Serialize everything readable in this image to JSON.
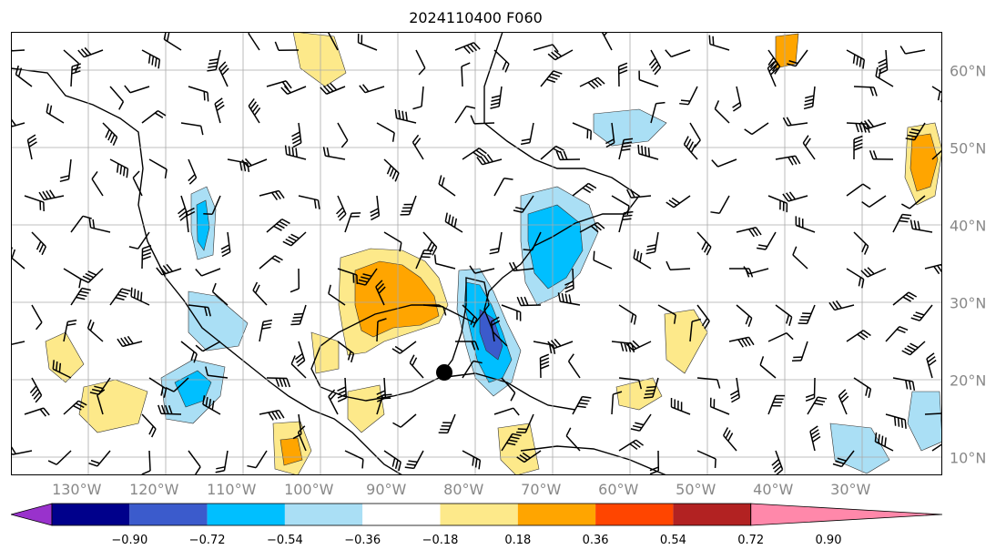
{
  "title": "2024110400 F060",
  "lon_labels": [
    {
      "text": "130°W",
      "lon": -130
    },
    {
      "text": "120°W",
      "lon": -120
    },
    {
      "text": "110°W",
      "lon": -110
    },
    {
      "text": "100°W",
      "lon": -100
    },
    {
      "text": "90°W",
      "lon": -90
    },
    {
      "text": "80°W",
      "lon": -80
    },
    {
      "text": "70°W",
      "lon": -70
    },
    {
      "text": "60°W",
      "lon": -60
    },
    {
      "text": "50°W",
      "lon": -50
    },
    {
      "text": "40°W",
      "lon": -40
    },
    {
      "text": "30°W",
      "lon": -30
    }
  ],
  "lat_labels": [
    {
      "text": "60°N",
      "lat": 60
    },
    {
      "text": "50°N",
      "lat": 50
    },
    {
      "text": "40°N",
      "lat": 40
    },
    {
      "text": "30°N",
      "lat": 30
    },
    {
      "text": "20°N",
      "lat": 20
    },
    {
      "text": "10°N",
      "lat": 10
    }
  ],
  "colorbar": {
    "levels": [
      "−0.90",
      "−0.72",
      "−0.54",
      "−0.36",
      "−0.18",
      "0.18",
      "0.36",
      "0.54",
      "0.72",
      "0.90"
    ],
    "colors": [
      "#9932cc",
      "#00008b",
      "#3b5bcc",
      "#00bfff",
      "#aadff5",
      "#ffffff",
      "#fde98a",
      "#ffa500",
      "#ff4500",
      "#b22222",
      "#ff88aa"
    ]
  },
  "storm_marker": {
    "lon": -82.5,
    "lat": 21.0
  }
}
